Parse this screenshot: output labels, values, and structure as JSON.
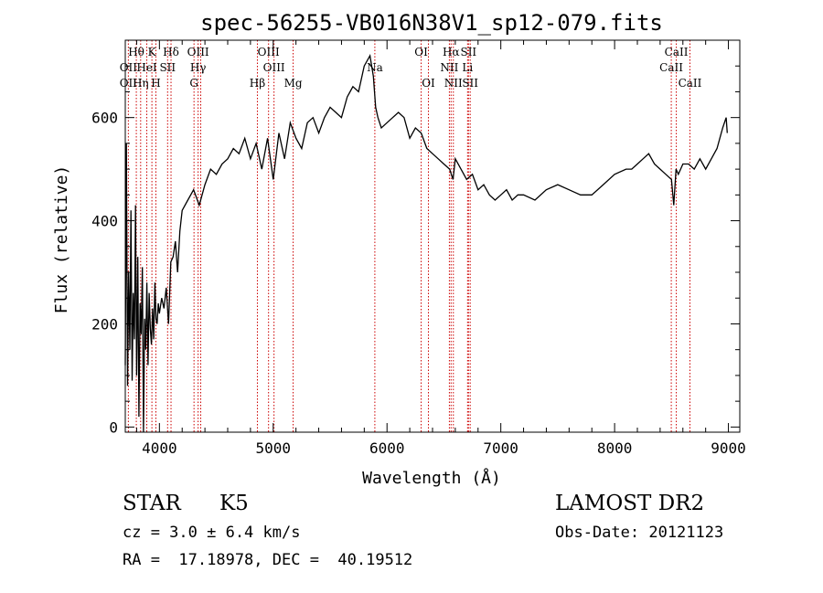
{
  "chart_data": {
    "type": "line",
    "title": "spec-56255-VB016N38V1_sp12-079.fits",
    "xlabel": "Wavelength (Å)",
    "ylabel": "Flux (relative)",
    "xlim": [
      3700,
      9100
    ],
    "ylim": [
      -10,
      750
    ],
    "xticks": [
      4000,
      5000,
      6000,
      7000,
      8000,
      9000
    ],
    "yticks": [
      0,
      200,
      400,
      600
    ],
    "series": [
      {
        "line_color": "#000000",
        "x": [
          3700,
          3710,
          3720,
          3730,
          3740,
          3750,
          3760,
          3770,
          3780,
          3790,
          3800,
          3810,
          3820,
          3830,
          3840,
          3850,
          3860,
          3870,
          3880,
          3890,
          3900,
          3910,
          3920,
          3930,
          3940,
          3950,
          3960,
          3970,
          3980,
          3990,
          4000,
          4020,
          4040,
          4060,
          4080,
          4100,
          4120,
          4140,
          4160,
          4180,
          4200,
          4250,
          4300,
          4350,
          4400,
          4450,
          4500,
          4550,
          4600,
          4650,
          4700,
          4750,
          4800,
          4850,
          4900,
          4950,
          5000,
          5050,
          5100,
          5150,
          5200,
          5250,
          5300,
          5350,
          5400,
          5450,
          5500,
          5550,
          5600,
          5650,
          5700,
          5750,
          5800,
          5850,
          5880,
          5900,
          5920,
          5950,
          6000,
          6050,
          6100,
          6150,
          6200,
          6250,
          6300,
          6350,
          6400,
          6450,
          6500,
          6550,
          6580,
          6600,
          6650,
          6700,
          6750,
          6800,
          6850,
          6900,
          6950,
          7000,
          7050,
          7100,
          7150,
          7200,
          7300,
          7400,
          7500,
          7600,
          7700,
          7800,
          7900,
          8000,
          8100,
          8150,
          8200,
          8250,
          8300,
          8350,
          8400,
          8450,
          8500,
          8520,
          8540,
          8560,
          8600,
          8650,
          8700,
          8750,
          8800,
          8850,
          8900,
          8950,
          8980,
          8990
        ],
        "y": [
          120,
          550,
          80,
          300,
          150,
          420,
          90,
          260,
          170,
          430,
          100,
          330,
          20,
          240,
          180,
          310,
          -10,
          210,
          150,
          280,
          120,
          260,
          190,
          160,
          230,
          170,
          280,
          210,
          200,
          240,
          220,
          250,
          230,
          270,
          200,
          320,
          330,
          360,
          300,
          380,
          420,
          440,
          460,
          430,
          470,
          500,
          490,
          510,
          520,
          540,
          530,
          560,
          520,
          550,
          500,
          560,
          480,
          570,
          520,
          590,
          560,
          540,
          590,
          600,
          570,
          600,
          620,
          610,
          600,
          640,
          660,
          650,
          700,
          720,
          680,
          620,
          600,
          580,
          590,
          600,
          610,
          600,
          560,
          580,
          570,
          540,
          530,
          520,
          510,
          500,
          480,
          520,
          500,
          480,
          490,
          460,
          470,
          450,
          440,
          450,
          460,
          440,
          450,
          450,
          440,
          460,
          470,
          460,
          450,
          450,
          470,
          490,
          500,
          500,
          510,
          520,
          530,
          510,
          500,
          490,
          480,
          430,
          500,
          490,
          510,
          510,
          500,
          520,
          500,
          520,
          540,
          580,
          600,
          570
        ]
      }
    ],
    "annotations": [
      {
        "label": "Hθ",
        "x": 3797,
        "row": 0
      },
      {
        "label": "K",
        "x": 3934,
        "row": 0
      },
      {
        "label": "Hδ",
        "x": 4102,
        "row": 0
      },
      {
        "label": "OIII",
        "x": 4340,
        "row": 0
      },
      {
        "label": "OIII",
        "x": 4959,
        "row": 0
      },
      {
        "label": "OI",
        "x": 6300,
        "row": 0
      },
      {
        "label": "Hα",
        "x": 6563,
        "row": 0
      },
      {
        "label": "SII",
        "x": 6716,
        "row": 0
      },
      {
        "label": "CaII",
        "x": 8542,
        "row": 0
      },
      {
        "label": "OII",
        "x": 3727,
        "row": 1
      },
      {
        "label": "HeI",
        "x": 3889,
        "row": 1
      },
      {
        "label": "SII",
        "x": 4072,
        "row": 1
      },
      {
        "label": "Hγ",
        "x": 4340,
        "row": 1
      },
      {
        "label": "OIII",
        "x": 5007,
        "row": 1
      },
      {
        "label": "Na",
        "x": 5893,
        "row": 1
      },
      {
        "label": "NII",
        "x": 6548,
        "row": 1
      },
      {
        "label": "Li",
        "x": 6708,
        "row": 1
      },
      {
        "label": "CaII",
        "x": 8498,
        "row": 1
      },
      {
        "label": "OII",
        "x": 3727,
        "row": 2
      },
      {
        "label": "Hη",
        "x": 3835,
        "row": 2
      },
      {
        "label": "H",
        "x": 3969,
        "row": 2
      },
      {
        "label": "G",
        "x": 4304,
        "row": 2
      },
      {
        "label": "Hβ",
        "x": 4861,
        "row": 2
      },
      {
        "label": "Mg",
        "x": 5175,
        "row": 2
      },
      {
        "label": "OI",
        "x": 6364,
        "row": 2
      },
      {
        "label": "NII",
        "x": 6583,
        "row": 2
      },
      {
        "label": "SII",
        "x": 6731,
        "row": 2
      },
      {
        "label": "CaII",
        "x": 8662,
        "row": 2
      }
    ],
    "line_positions": [
      3727,
      3797,
      3835,
      3889,
      3934,
      3969,
      4072,
      4102,
      4304,
      4340,
      4363,
      4861,
      4959,
      5007,
      5175,
      5893,
      6300,
      6364,
      6548,
      6563,
      6583,
      6708,
      6716,
      6731,
      8498,
      8542,
      8662
    ],
    "line_color": "#cc0000"
  },
  "info": {
    "object_class": "STAR",
    "subclass": "K5",
    "survey": "LAMOST DR2",
    "redshift": "cz = 3.0 ± 6.4 km/s",
    "obs_date": "Obs-Date: 20121123",
    "coords": "RA =  17.18978, DEC =  40.19512"
  }
}
